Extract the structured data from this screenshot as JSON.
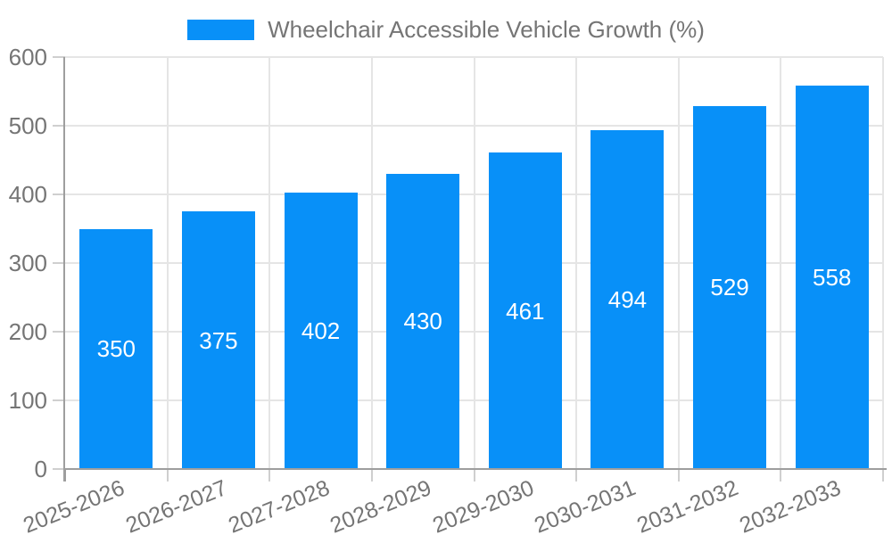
{
  "chart_data": {
    "type": "bar",
    "title": "Wheelchair Accessible Vehicle Growth (%)",
    "series_name": "Wheelchair Accessible Vehicle Growth (%)",
    "categories": [
      "2025-2026",
      "2026-2027",
      "2027-2028",
      "2028-2029",
      "2029-2030",
      "2030-2031",
      "2031-2032",
      "2032-2033"
    ],
    "values": [
      350,
      375,
      402,
      430,
      461,
      494,
      529,
      558
    ],
    "value_labels_shown": true,
    "xlabel": "",
    "ylabel": "",
    "ylim": [
      0,
      600
    ],
    "yticks": [
      0,
      100,
      200,
      300,
      400,
      500,
      600
    ],
    "grid": true,
    "legend_position": "top",
    "x_label_rotation_deg": -22,
    "colors": {
      "bar": "#0890f8",
      "value_label": "#ffffff",
      "axis": "#9e9e9e",
      "grid": "#e5e5e5",
      "tick": "#cfcfcf",
      "text": "#757575",
      "background": "#ffffff"
    }
  }
}
